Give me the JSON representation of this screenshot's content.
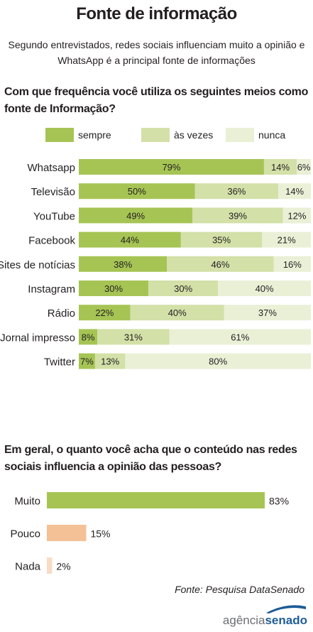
{
  "title": "Fonte de informação",
  "subtitle": "Segundo entrevistados, redes sociais influenciam muito a opinião e WhatsApp é a principal fonte de informações",
  "question1": "Com que frequência você utiliza os seguintes meios como fonte de Informação?",
  "question2": "Em geral, o quanto você acha que o conteúdo nas redes sociais influencia a opinião das pessoas?",
  "legend": [
    {
      "label": "sempre",
      "color": "#a6c454"
    },
    {
      "label": "às vezes",
      "color": "#d3e0a8"
    },
    {
      "label": "nunca",
      "color": "#e9f0d6"
    }
  ],
  "source": "Fonte: Pesquisa DataSenado",
  "logo": {
    "part1": "agência",
    "part2": "senado"
  },
  "chart_data": [
    {
      "type": "bar",
      "stacked": true,
      "orientation": "horizontal",
      "categories": [
        "Whatsapp",
        "Televisão",
        "YouTube",
        "Facebook",
        "Sites de notícias",
        "Instagram",
        "Rádio",
        "Jornal impresso",
        "Twitter"
      ],
      "series": [
        {
          "name": "sempre",
          "color": "#a6c454",
          "values": [
            79,
            50,
            49,
            44,
            38,
            30,
            22,
            8,
            7
          ]
        },
        {
          "name": "às vezes",
          "color": "#d3e0a8",
          "values": [
            14,
            36,
            39,
            35,
            46,
            30,
            40,
            31,
            13
          ]
        },
        {
          "name": "nunca",
          "color": "#e9f0d6",
          "values": [
            6,
            14,
            12,
            21,
            16,
            40,
            37,
            61,
            80
          ]
        }
      ],
      "value_suffix": "%"
    },
    {
      "type": "bar",
      "orientation": "horizontal",
      "categories": [
        "Muito",
        "Pouco",
        "Nada"
      ],
      "values": [
        83,
        15,
        2
      ],
      "colors": [
        "#a6c454",
        "#f4c095",
        "#f9dcc4"
      ],
      "value_suffix": "%"
    }
  ]
}
